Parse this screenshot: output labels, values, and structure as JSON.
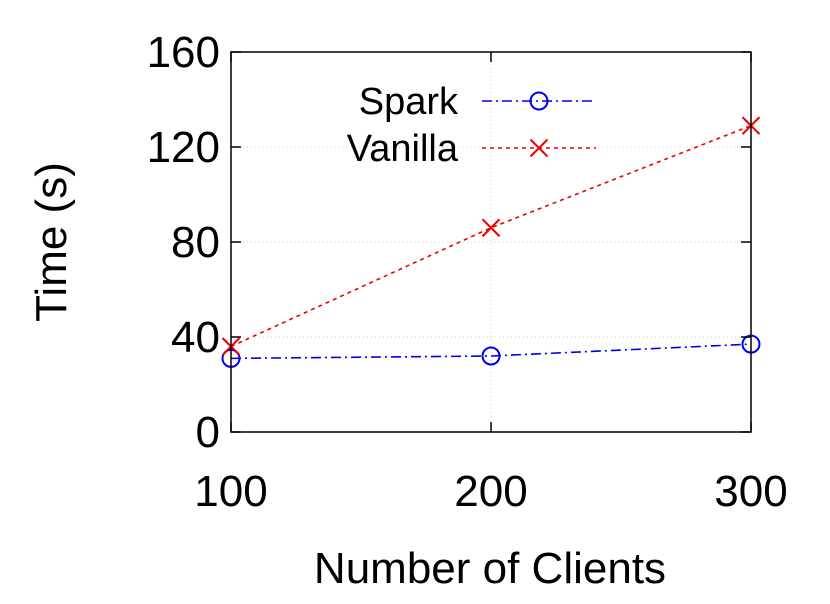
{
  "chart_data": {
    "type": "line",
    "xlabel": "Number of Clients",
    "ylabel": "Time (s)",
    "x": [
      100,
      200,
      300
    ],
    "xticks": [
      "100",
      "200",
      "300"
    ],
    "yticks": [
      "0",
      "40",
      "80",
      "120",
      "160"
    ],
    "ylim": [
      0,
      160
    ],
    "grid": true,
    "legend_position": "top",
    "series": [
      {
        "name": "Spark",
        "values": [
          31,
          32,
          37
        ],
        "color": "#0000ee",
        "marker": "circle",
        "line_style": "dash-dot"
      },
      {
        "name": "Vanilla",
        "values": [
          36,
          86,
          129
        ],
        "color": "#ee0000",
        "marker": "cross",
        "line_style": "dotted"
      }
    ]
  }
}
